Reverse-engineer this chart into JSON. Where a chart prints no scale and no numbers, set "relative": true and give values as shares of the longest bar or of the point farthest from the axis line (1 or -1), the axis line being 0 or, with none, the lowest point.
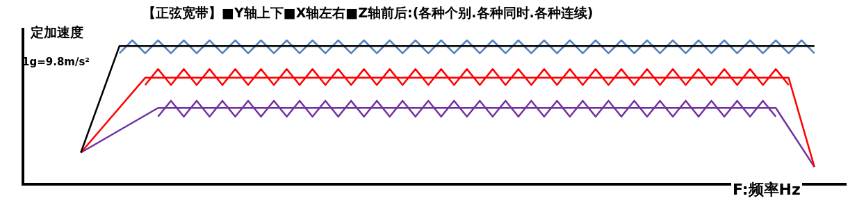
{
  "chart_data": {
    "type": "line",
    "relative": true,
    "title": "【正弦宽带】■Y轴上下■X轴左右■Z轴前后:(各种个别.各种同时.各种连续)",
    "ylabel": "定加速度",
    "xlabel": "F:频率Hz",
    "annotations": [
      "1g=9.8m/s²"
    ],
    "categories": [
      null,
      null,
      null,
      null,
      null,
      null,
      null,
      null,
      null,
      null,
      null,
      null,
      null,
      null,
      null,
      null,
      null,
      null,
      null,
      null,
      null,
      null,
      null,
      null,
      null,
      null,
      null,
      null,
      null,
      null,
      null,
      null,
      null,
      null,
      null,
      null,
      null,
      null,
      null,
      null,
      null,
      null,
      null,
      null,
      null,
      null,
      null,
      null,
      null,
      null,
      null,
      null,
      null,
      null,
      null,
      null,
      null,
      null
    ],
    "series": [
      {
        "color": "#000000",
        "values": [
          0.22,
          null,
          null,
          0.96,
          null,
          null,
          null,
          null,
          null,
          null,
          null,
          null,
          null,
          null,
          null,
          null,
          null,
          null,
          null,
          null,
          null,
          null,
          null,
          null,
          null,
          null,
          null,
          null,
          null,
          null,
          null,
          null,
          null,
          null,
          null,
          null,
          null,
          null,
          null,
          null,
          null,
          null,
          null,
          null,
          null,
          null,
          null,
          null,
          null,
          null,
          null,
          null,
          null,
          null,
          null,
          null,
          null,
          0.96
        ]
      },
      {
        "color": "#4f81bd",
        "values": [
          null,
          null,
          null,
          0.91,
          1,
          0.91,
          1,
          0.91,
          1,
          0.91,
          1,
          0.91,
          1,
          0.91,
          1,
          0.91,
          1,
          0.91,
          1,
          0.91,
          1,
          0.91,
          1,
          0.91,
          1,
          0.91,
          1,
          0.91,
          1,
          0.91,
          1,
          0.91,
          1,
          0.91,
          1,
          0.91,
          1,
          0.91,
          1,
          0.91,
          1,
          0.91,
          1,
          0.91,
          1,
          0.91,
          1,
          0.91,
          1,
          0.91,
          1,
          0.91,
          1,
          0.91,
          1,
          0.91,
          1,
          0.91
        ]
      },
      {
        "color": "#ff0000",
        "values": [
          0.22,
          null,
          null,
          null,
          null,
          0.74,
          null,
          null,
          null,
          null,
          null,
          null,
          null,
          null,
          null,
          null,
          null,
          null,
          null,
          null,
          null,
          null,
          null,
          null,
          null,
          null,
          null,
          null,
          null,
          null,
          null,
          null,
          null,
          null,
          null,
          null,
          null,
          null,
          null,
          null,
          null,
          null,
          null,
          null,
          null,
          null,
          null,
          null,
          null,
          null,
          null,
          null,
          null,
          null,
          null,
          0.74,
          null,
          0.12
        ]
      },
      {
        "color": "#ff0000",
        "values": [
          null,
          null,
          null,
          null,
          null,
          0.69,
          0.8,
          0.69,
          0.8,
          0.69,
          0.8,
          0.69,
          0.8,
          0.69,
          0.8,
          0.69,
          0.8,
          0.69,
          0.8,
          0.69,
          0.8,
          0.69,
          0.8,
          0.69,
          0.8,
          0.69,
          0.8,
          0.69,
          0.8,
          0.69,
          0.8,
          0.69,
          0.8,
          0.69,
          0.8,
          0.69,
          0.8,
          0.69,
          0.8,
          0.69,
          0.8,
          0.69,
          0.8,
          0.69,
          0.8,
          0.69,
          0.8,
          0.69,
          0.8,
          0.69,
          0.8,
          0.69,
          0.8,
          0.69,
          0.8,
          0.69,
          null,
          null
        ]
      },
      {
        "color": "#7030a0",
        "values": [
          0.22,
          null,
          null,
          null,
          null,
          null,
          0.53,
          null,
          null,
          null,
          null,
          null,
          null,
          null,
          null,
          null,
          null,
          null,
          null,
          null,
          null,
          null,
          null,
          null,
          null,
          null,
          null,
          null,
          null,
          null,
          null,
          null,
          null,
          null,
          null,
          null,
          null,
          null,
          null,
          null,
          null,
          null,
          null,
          null,
          null,
          null,
          null,
          null,
          null,
          null,
          null,
          null,
          null,
          null,
          0.53,
          null,
          null,
          0.12
        ]
      },
      {
        "color": "#7030a0",
        "values": [
          null,
          null,
          null,
          null,
          null,
          null,
          0.47,
          0.58,
          0.47,
          0.58,
          0.47,
          0.58,
          0.47,
          0.58,
          0.47,
          0.58,
          0.47,
          0.58,
          0.47,
          0.58,
          0.47,
          0.58,
          0.47,
          0.58,
          0.47,
          0.58,
          0.47,
          0.58,
          0.47,
          0.58,
          0.47,
          0.58,
          0.47,
          0.58,
          0.47,
          0.58,
          0.47,
          0.58,
          0.47,
          0.58,
          0.47,
          0.58,
          0.47,
          0.58,
          0.47,
          0.58,
          0.47,
          0.58,
          0.47,
          0.58,
          0.47,
          0.58,
          0.47,
          0.58,
          0.47,
          null,
          null,
          null
        ]
      }
    ]
  }
}
